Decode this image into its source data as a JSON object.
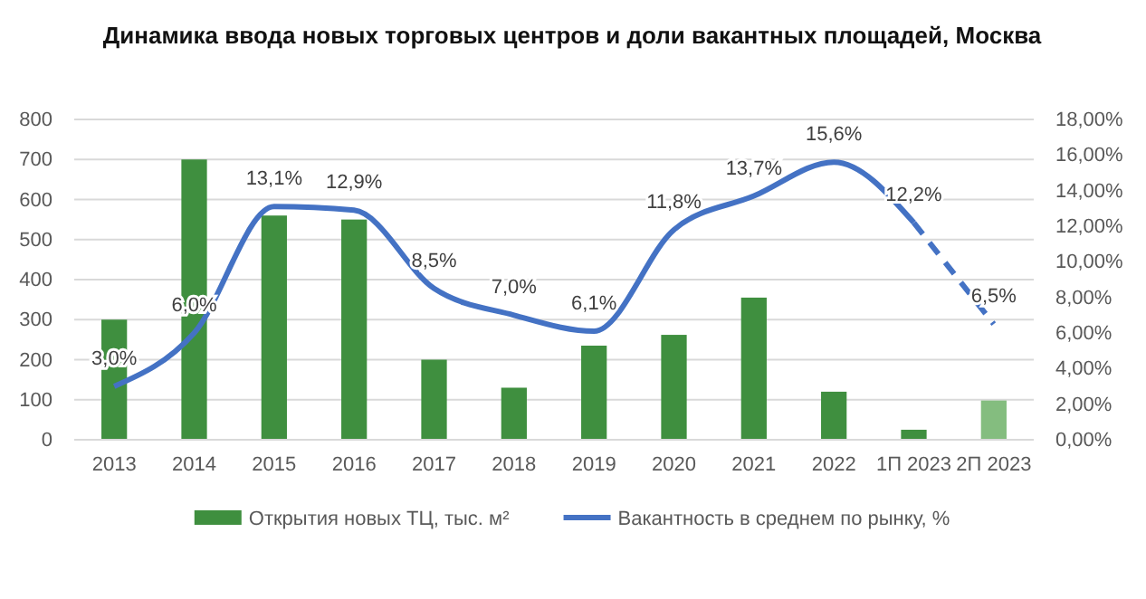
{
  "chart_data": {
    "type": "bar",
    "title": "Динамика ввода новых торговых центров и доли вакантных площадей, Москва",
    "categories": [
      "2013",
      "2014",
      "2015",
      "2016",
      "2017",
      "2018",
      "2019",
      "2020",
      "2021",
      "2022",
      "1П 2023",
      "2П 2023"
    ],
    "series": [
      {
        "name": "Открытия новых ТЦ, тыс. м²",
        "color": "#3f8f3f",
        "colors": [
          "#3f8f3f",
          "#3f8f3f",
          "#3f8f3f",
          "#3f8f3f",
          "#3f8f3f",
          "#3f8f3f",
          "#3f8f3f",
          "#3f8f3f",
          "#3f8f3f",
          "#3f8f3f",
          "#3f8f3f",
          "#84bd7f"
        ],
        "values": [
          300,
          700,
          560,
          550,
          200,
          130,
          235,
          262,
          355,
          120,
          25,
          98
        ]
      },
      {
        "name": "Вакантность в среднем по рынку, %",
        "type": "line",
        "axis": "y2",
        "color": "#4472c4",
        "line_style": "solid",
        "values": [
          3.0,
          6.0,
          13.1,
          12.9,
          8.5,
          7.0,
          6.1,
          11.8,
          13.7,
          15.6,
          12.2,
          null
        ],
        "value_labels": [
          "3,0%",
          "6,0%",
          "13,1%",
          "12,9%",
          "8,5%",
          "7,0%",
          "6,1%",
          "11,8%",
          "13,7%",
          "15,6%",
          "12,2%",
          null
        ]
      },
      {
        "type": "line",
        "axis": "y2",
        "color": "#4472c4",
        "line_style": "dashed",
        "values": [
          null,
          null,
          null,
          null,
          null,
          null,
          null,
          null,
          null,
          null,
          12.2,
          6.5
        ],
        "value_labels": [
          null,
          null,
          null,
          null,
          null,
          null,
          null,
          null,
          null,
          null,
          null,
          "6,5%"
        ]
      }
    ],
    "ylim": [
      0,
      800
    ],
    "yticks": [
      0,
      100,
      200,
      300,
      400,
      500,
      600,
      700,
      800
    ],
    "y2lim": [
      0,
      18
    ],
    "y2ticks": [
      {
        "value": 0,
        "label": "0,00%"
      },
      {
        "value": 2,
        "label": "2,00%"
      },
      {
        "value": 4,
        "label": "4,00%"
      },
      {
        "value": 6,
        "label": "6,00%"
      },
      {
        "value": 8,
        "label": "8,00%"
      },
      {
        "value": 10,
        "label": "10,00%"
      },
      {
        "value": 12,
        "label": "12,00%"
      },
      {
        "value": 14,
        "label": "14,00%"
      },
      {
        "value": 16,
        "label": "16,00%"
      },
      {
        "value": 18,
        "label": "18,00%"
      }
    ],
    "grid": "y",
    "legend": "bottom"
  }
}
